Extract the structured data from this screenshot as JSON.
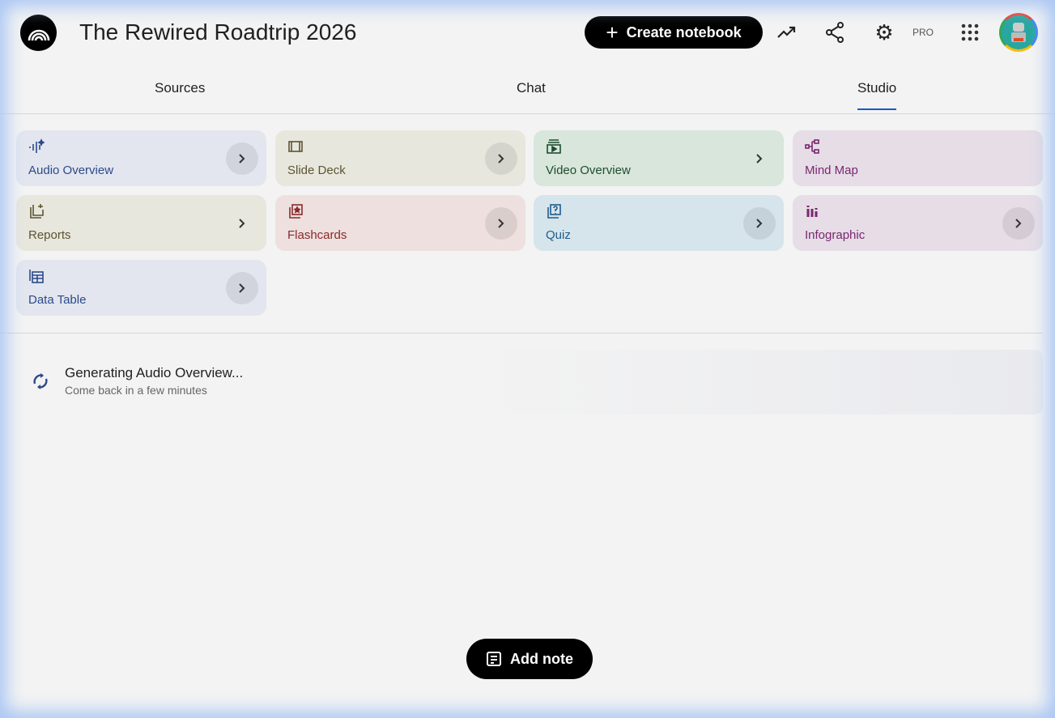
{
  "header": {
    "title": "The Rewired Roadtrip 2026",
    "create_label": "Create notebook",
    "pro_label": "PRO"
  },
  "tabs": [
    {
      "label": "Sources"
    },
    {
      "label": "Chat"
    },
    {
      "label": "Studio",
      "active": true
    }
  ],
  "studio": {
    "cards": [
      {
        "label": "Audio Overview",
        "icon": "audio-waveform-icon",
        "bg": "#e3e6ef",
        "color": "#2b4a8a"
      },
      {
        "label": "Slide Deck",
        "icon": "slides-icon",
        "bg": "#e8e7de",
        "color": "#5c5432"
      },
      {
        "label": "Video Overview",
        "icon": "video-icon",
        "bg": "#d8e6dc",
        "color": "#1f4d2e"
      },
      {
        "label": "Mind Map",
        "icon": "mind-map-icon",
        "bg": "#e6dde6",
        "color": "#7a2670"
      },
      {
        "label": "Reports",
        "icon": "report-icon",
        "bg": "#e8e7de",
        "color": "#5c5432"
      },
      {
        "label": "Flashcards",
        "icon": "flashcards-icon",
        "bg": "#ede0df",
        "color": "#8a2a2a"
      },
      {
        "label": "Quiz",
        "icon": "quiz-icon",
        "bg": "#d6e4ec",
        "color": "#1f5e8a"
      },
      {
        "label": "Infographic",
        "icon": "infographic-icon",
        "bg": "#e6dde6",
        "color": "#7a2670"
      },
      {
        "label": "Data Table",
        "icon": "table-icon",
        "bg": "#e3e6ef",
        "color": "#2b4a8a"
      }
    ]
  },
  "generating": {
    "title": "Generating Audio Overview...",
    "subtitle": "Come back in a few minutes"
  },
  "add_note_label": "Add note"
}
